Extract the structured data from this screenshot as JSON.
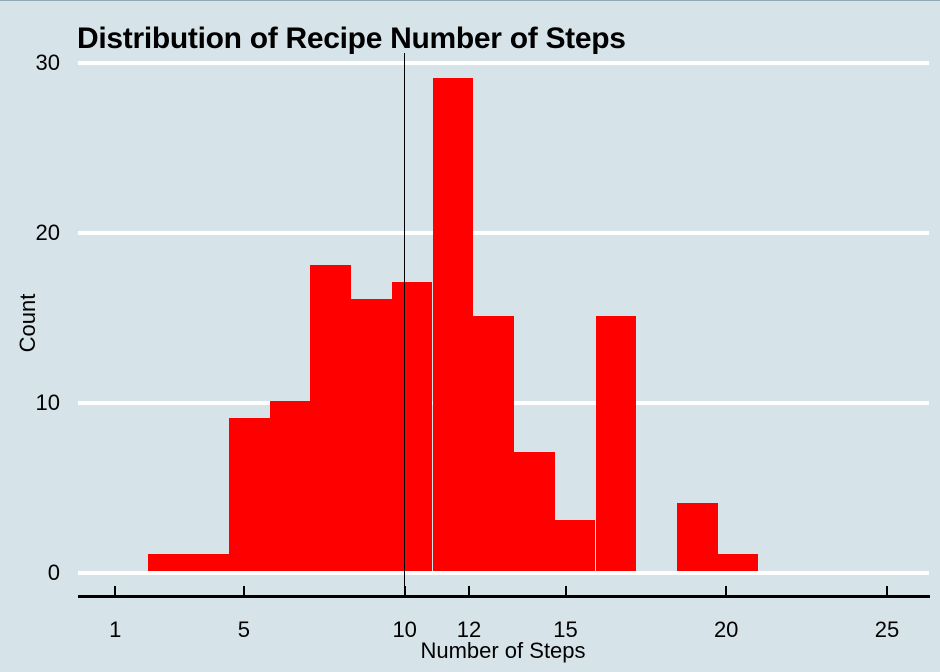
{
  "title": "Distribution of Recipe Number of Steps",
  "x_axis": {
    "label": "Number of Steps",
    "tick_labels": [
      "1",
      "5",
      "10",
      "12",
      "15",
      "20",
      "25"
    ]
  },
  "y_axis": {
    "label": "Count",
    "tick_labels": [
      "0",
      "10",
      "20",
      "30"
    ]
  },
  "colors": {
    "background": "#d6e3e9",
    "bar": "#fe0000",
    "gridline": "#ffffff",
    "axis": "#000000",
    "reference_line": "#000000",
    "text": "#000000"
  },
  "chart_data": {
    "type": "bar",
    "variant": "histogram",
    "title": "Distribution of Recipe Number of Steps",
    "xlabel": "Number of Steps",
    "ylabel": "Count",
    "x_tick_values": [
      1,
      5,
      10,
      12,
      15,
      20,
      25
    ],
    "y_tick_values": [
      0,
      10,
      20,
      30
    ],
    "xlim": [
      -0.2,
      26.3
    ],
    "ylim": [
      0,
      30.6
    ],
    "grid": "horizontal white gridlines at y ticks",
    "legend": "none",
    "bins": {
      "start": 2,
      "width": 1.2667,
      "end": 21,
      "edges": [
        2,
        3.27,
        4.53,
        5.8,
        7.07,
        8.33,
        9.6,
        10.87,
        12.13,
        13.4,
        14.67,
        15.93,
        17.2,
        18.47,
        19.73,
        21
      ]
    },
    "counts": [
      1,
      1,
      9,
      10,
      18,
      16,
      17,
      29,
      15,
      7,
      3,
      15,
      0,
      4,
      1
    ],
    "total_n": 146,
    "reference_line_x": 10
  }
}
